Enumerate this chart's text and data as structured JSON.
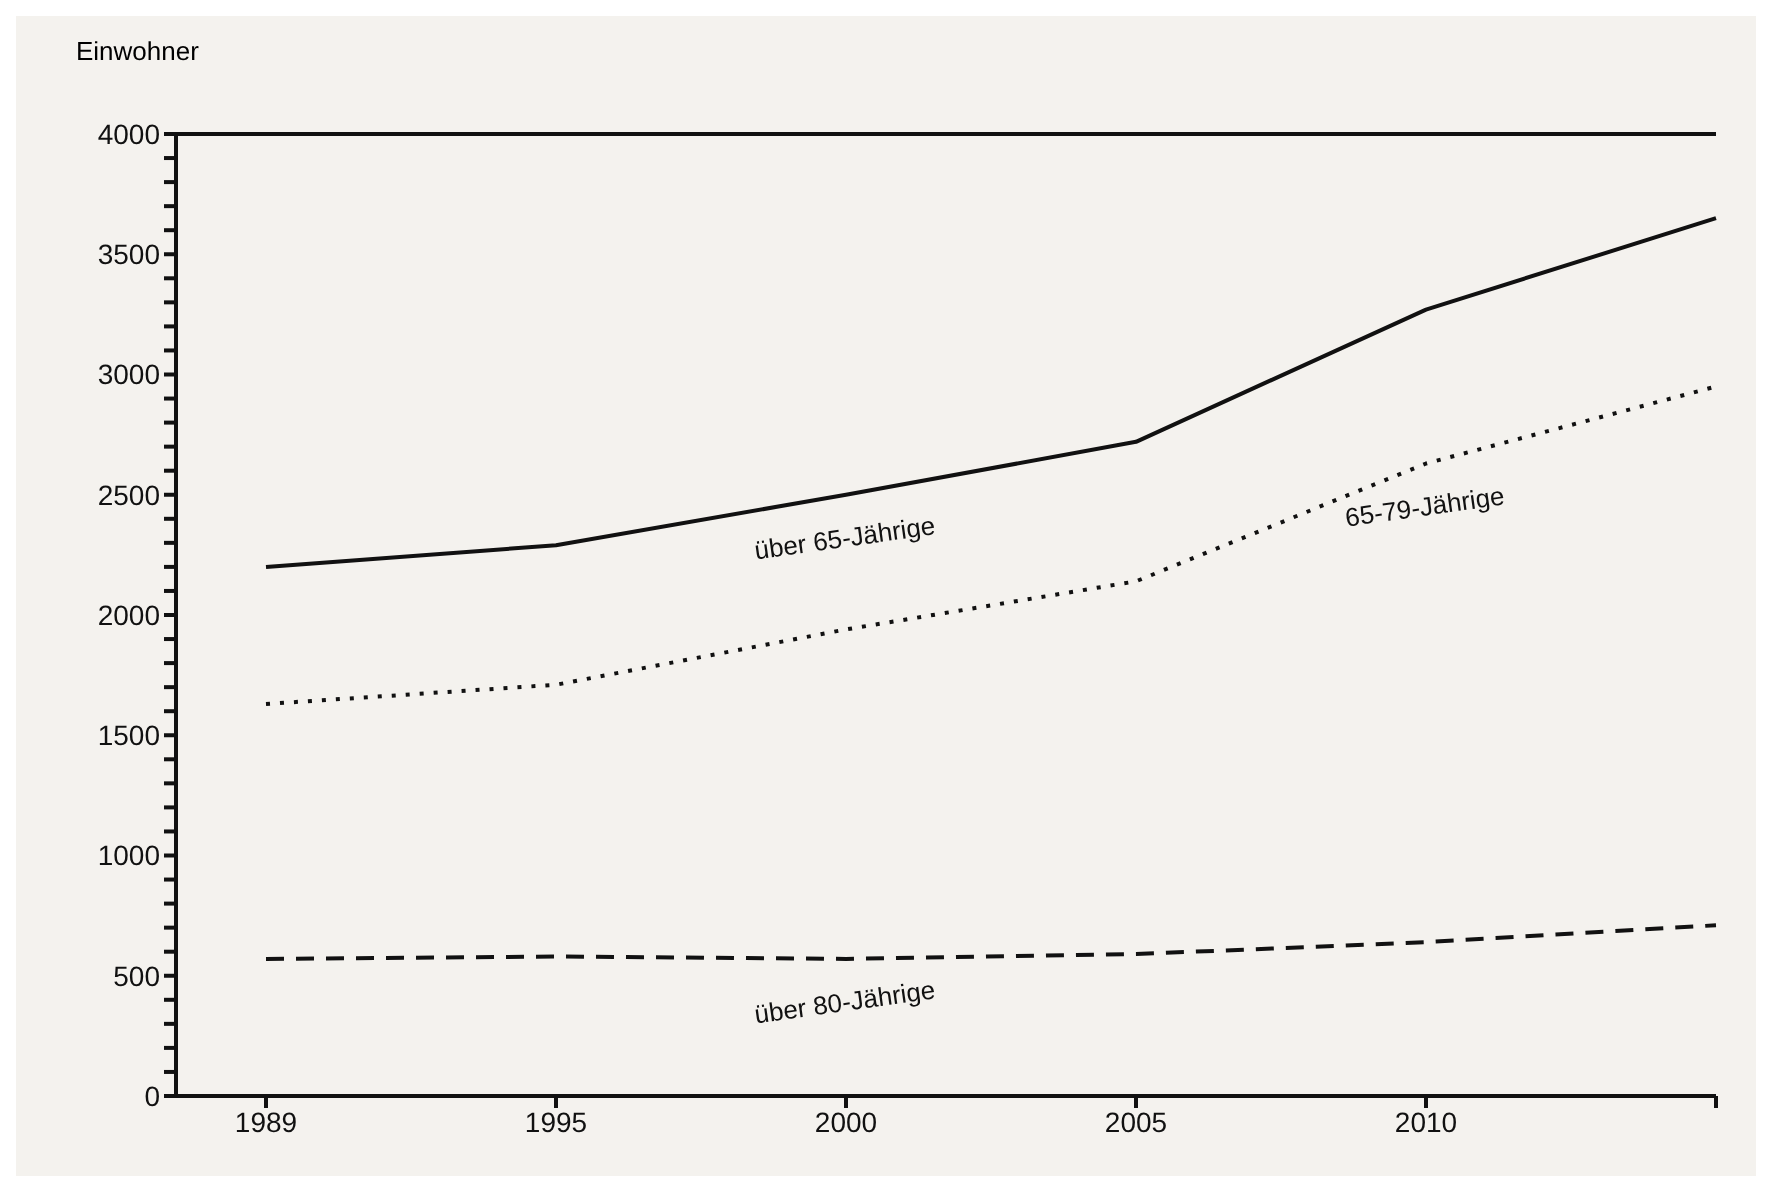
{
  "chart_data": {
    "type": "line",
    "ylabel": "Einwohner",
    "categories": [
      "1989",
      "1995",
      "2000",
      "2005",
      "2010",
      null
    ],
    "series": [
      {
        "name": "über 65-Jährige",
        "color": "#111111",
        "line_style": "solid",
        "values": [
          2200,
          2290,
          2500,
          2720,
          3270,
          3650
        ]
      },
      {
        "name": "65-79-Jährige",
        "color": "#111111",
        "line_style": "dotted",
        "values": [
          1630,
          1710,
          1940,
          2140,
          2630,
          2950
        ]
      },
      {
        "name": "über 80-Jährige",
        "color": "#111111",
        "line_style": "dashed",
        "values": [
          570,
          580,
          570,
          590,
          640,
          710
        ]
      }
    ],
    "ylim": [
      0,
      4000
    ],
    "yticks": [
      0,
      {
        "value": 100,
        "label": null
      },
      {
        "value": 200,
        "label": null
      },
      {
        "value": 300,
        "label": null
      },
      {
        "value": 400,
        "label": null
      },
      500,
      {
        "value": 600,
        "label": null
      },
      {
        "value": 700,
        "label": null
      },
      {
        "value": 800,
        "label": null
      },
      {
        "value": 900,
        "label": null
      },
      1000,
      {
        "value": 1100,
        "label": null
      },
      {
        "value": 1200,
        "label": null
      },
      {
        "value": 1300,
        "label": null
      },
      {
        "value": 1400,
        "label": null
      },
      1500,
      {
        "value": 1600,
        "label": null
      },
      {
        "value": 1700,
        "label": null
      },
      {
        "value": 1800,
        "label": null
      },
      {
        "value": 1900,
        "label": null
      },
      2000,
      {
        "value": 2100,
        "label": null
      },
      {
        "value": 2200,
        "label": null
      },
      {
        "value": 2300,
        "label": null
      },
      {
        "value": 2400,
        "label": null
      },
      2500,
      {
        "value": 2600,
        "label": null
      },
      {
        "value": 2700,
        "label": null
      },
      {
        "value": 2800,
        "label": null
      },
      {
        "value": 2900,
        "label": null
      },
      3000,
      {
        "value": 3100,
        "label": null
      },
      {
        "value": 3200,
        "label": null
      },
      {
        "value": 3300,
        "label": null
      },
      {
        "value": 3400,
        "label": null
      },
      3500,
      {
        "value": 3600,
        "label": null
      },
      {
        "value": 3700,
        "label": null
      },
      {
        "value": 3800,
        "label": null
      },
      {
        "value": 3900,
        "label": null
      },
      4000
    ],
    "grid": false,
    "legend": false,
    "marker": "none"
  }
}
